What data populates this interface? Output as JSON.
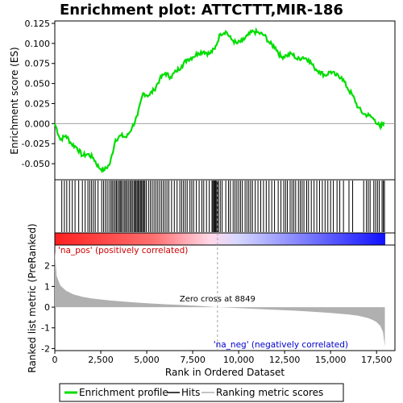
{
  "chart_data": {
    "type": "line",
    "title": "Enrichment plot: ATTCTTT,MIR-186",
    "xlabel": "Rank in Ordered Dataset",
    "ylabel_top": "Enrichment score (ES)",
    "ylabel_bottom": "Ranked list metric (PreRanked)",
    "xlim": [
      0,
      18500
    ],
    "ylim_es": [
      -0.07,
      0.128
    ],
    "ylim_metric": [
      -2.1,
      3.0
    ],
    "x_ticks": [
      0,
      2500,
      5000,
      7500,
      10000,
      12500,
      15000,
      17500
    ],
    "x_tick_labels": [
      "0",
      "2,500",
      "5,000",
      "7,500",
      "10,000",
      "12,500",
      "15,000",
      "17,500"
    ],
    "es_ticks": [
      -0.05,
      -0.025,
      0.0,
      0.025,
      0.05,
      0.075,
      0.1,
      0.125
    ],
    "es_tick_labels": [
      "-0.050",
      "-0.025",
      "0.000",
      "0.025",
      "0.050",
      "0.075",
      "0.100",
      "0.125"
    ],
    "metric_ticks": [
      -2,
      -1,
      0,
      1,
      2
    ],
    "metric_tick_labels": [
      "-2",
      "-1",
      "0",
      "1",
      "2"
    ],
    "es_profile": {
      "x": [
        0,
        300,
        600,
        900,
        1200,
        1500,
        1800,
        2100,
        2400,
        2700,
        3000,
        3300,
        3600,
        3900,
        4200,
        4500,
        4800,
        5100,
        5400,
        5700,
        6000,
        6300,
        6600,
        6900,
        7200,
        7500,
        7800,
        8100,
        8400,
        8700,
        9000,
        9300,
        9600,
        9900,
        10200,
        10500,
        10800,
        11100,
        11400,
        11700,
        12000,
        12300,
        12600,
        12900,
        13200,
        13500,
        13800,
        14100,
        14400,
        14700,
        15000,
        15300,
        15600,
        15900,
        16200,
        16500,
        16800,
        17100,
        17400,
        17700,
        17900
      ],
      "y": [
        0.0,
        -0.02,
        -0.015,
        -0.025,
        -0.03,
        -0.04,
        -0.038,
        -0.043,
        -0.055,
        -0.058,
        -0.05,
        -0.02,
        -0.015,
        -0.017,
        -0.005,
        0.01,
        0.038,
        0.035,
        0.042,
        0.055,
        0.063,
        0.058,
        0.065,
        0.072,
        0.08,
        0.083,
        0.088,
        0.09,
        0.087,
        0.093,
        0.112,
        0.115,
        0.105,
        0.1,
        0.103,
        0.11,
        0.115,
        0.113,
        0.11,
        0.1,
        0.095,
        0.083,
        0.085,
        0.087,
        0.08,
        0.083,
        0.08,
        0.07,
        0.065,
        0.06,
        0.065,
        0.06,
        0.058,
        0.045,
        0.035,
        0.02,
        0.012,
        0.01,
        0.005,
        -0.005,
        0.002
      ]
    },
    "hits": [
      380,
      520,
      650,
      800,
      950,
      1100,
      1300,
      1500,
      1650,
      1800,
      1900,
      2000,
      2100,
      2200,
      2350,
      2550,
      2650,
      2750,
      2850,
      2950,
      3050,
      3120,
      3200,
      3280,
      3350,
      3420,
      3500,
      3560,
      3620,
      3700,
      3780,
      3850,
      3920,
      4000,
      4080,
      4150,
      4220,
      4300,
      4360,
      4420,
      4480,
      4540,
      4600,
      4660,
      4720,
      4780,
      4840,
      4900,
      4980,
      5100,
      5200,
      5300,
      5400,
      5500,
      5600,
      5700,
      5800,
      5900,
      6000,
      6100,
      6200,
      6350,
      6500,
      6650,
      6800,
      6900,
      7000,
      7100,
      7200,
      7350,
      7450,
      7550,
      7700,
      7850,
      8000,
      8100,
      8250,
      8400,
      8550,
      8600,
      8650,
      8700,
      8750,
      8800,
      8850,
      8900,
      9000,
      9100,
      9300,
      9450,
      9550,
      9700,
      9800,
      9900,
      10000,
      10100,
      10200,
      10350,
      10450,
      10550,
      10650,
      10750,
      10900,
      11050,
      11200,
      11350,
      11500,
      11650,
      11800,
      11950,
      12150,
      12300,
      12450,
      12550,
      12650,
      12800,
      12900,
      13000,
      13100,
      13250,
      13350,
      13450,
      13550,
      13700,
      13800,
      13950,
      14100,
      14250,
      14400,
      14550,
      14700,
      14850,
      15000,
      15150,
      15350,
      15500,
      15700,
      16000,
      16200,
      16800,
      16950,
      17050,
      17150,
      17350,
      17450,
      17550,
      17650,
      17800,
      17870,
      17930
    ],
    "metric": {
      "x": [
        0,
        100,
        300,
        600,
        1000,
        1500,
        2000,
        3000,
        4000,
        5000,
        6000,
        7000,
        8000,
        8849,
        10000,
        11000,
        12000,
        13000,
        14000,
        15000,
        16000,
        16500,
        17000,
        17300,
        17500,
        17700,
        17850,
        17950
      ],
      "y": [
        2.7,
        1.5,
        1.05,
        0.8,
        0.62,
        0.5,
        0.42,
        0.32,
        0.25,
        0.19,
        0.14,
        0.1,
        0.05,
        0.0,
        -0.05,
        -0.09,
        -0.13,
        -0.17,
        -0.22,
        -0.28,
        -0.36,
        -0.42,
        -0.52,
        -0.62,
        -0.72,
        -0.9,
        -1.2,
        -1.9
      ]
    },
    "zero_cross_label": "Zero cross at 8849",
    "zero_cross_x": 8849,
    "pos_label": "'na_pos' (positively correlated)",
    "neg_label": "'na_neg' (negatively correlated)",
    "legend": [
      "Enrichment profile",
      "Hits",
      "Ranking metric scores"
    ],
    "legend_placement": "bottom",
    "colors": {
      "profile": "#00dd00",
      "hits": "#000000",
      "metric": "#b0b0b0",
      "pos": "#ff0000",
      "neg": "#0000ff",
      "pos_text": "#cc0000",
      "neg_text": "#0000cc"
    }
  }
}
